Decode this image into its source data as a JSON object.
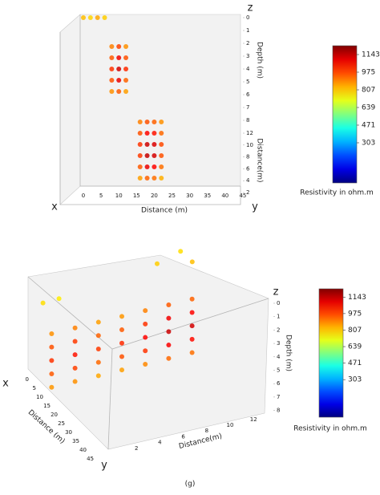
{
  "chart_data": [
    {
      "type": "scatter3d",
      "axis_names": {
        "x": "x",
        "y": "y",
        "z": "z"
      },
      "xlabel": "Distance (m)",
      "ylabel": "Distance(m)",
      "zlabel": "Depth (m)",
      "xlim": [
        0,
        45
      ],
      "ylim": [
        0,
        12
      ],
      "zlim": [
        0,
        8
      ],
      "xticks": [
        0,
        5,
        10,
        15,
        20,
        25,
        30,
        35,
        40,
        45
      ],
      "yticks": [
        12,
        10,
        8,
        6,
        4,
        2
      ],
      "zticks": [
        0,
        1,
        2,
        3,
        4,
        5,
        6,
        7,
        8
      ],
      "points": {
        "x": [
          0,
          2,
          4,
          6,
          8,
          10,
          12,
          8,
          10,
          12,
          8,
          10,
          12,
          8,
          10,
          12,
          8,
          10,
          12,
          16,
          18,
          20,
          22,
          16,
          18,
          20,
          22,
          16,
          18,
          20,
          22,
          16,
          18,
          20,
          22,
          16,
          18,
          20,
          22,
          16,
          18,
          20,
          22
        ],
        "y": [
          12,
          12,
          12,
          12,
          11,
          11,
          11,
          11,
          11,
          11,
          11,
          11,
          11,
          11,
          11,
          11,
          11,
          11,
          11,
          1,
          1,
          1,
          1,
          1,
          1,
          1,
          1,
          1,
          1,
          1,
          1,
          1,
          1,
          1,
          1,
          1,
          1,
          1,
          1,
          1,
          1,
          1,
          1
        ],
        "z": [
          0,
          0,
          0,
          0,
          2,
          2,
          2,
          3,
          3,
          3,
          4,
          4,
          4,
          5,
          5,
          5,
          6,
          6,
          6,
          3,
          3,
          3,
          3,
          4,
          4,
          4,
          4,
          5,
          5,
          5,
          5,
          6,
          6,
          6,
          6,
          7,
          7,
          7,
          7,
          8,
          8,
          8,
          8
        ],
        "values": [
          820,
          790,
          850,
          800,
          900,
          980,
          880,
          950,
          1080,
          960,
          1000,
          1120,
          1010,
          960,
          1090,
          940,
          880,
          950,
          860,
          900,
          960,
          940,
          880,
          960,
          1060,
          1040,
          930,
          1000,
          1130,
          1110,
          970,
          990,
          1140,
          1120,
          960,
          950,
          1090,
          1060,
          920,
          860,
          940,
          920,
          840
        ]
      },
      "colorbar": {
        "label": "Resistivity in ohm.m",
        "ticks": [
          1143,
          975,
          807,
          639,
          471,
          303
        ],
        "clim": [
          -79,
          1227
        ],
        "colormap": "jet"
      }
    },
    {
      "type": "scatter3d",
      "axis_names": {
        "x": "x",
        "y": "y",
        "z": "z"
      },
      "xlabel": "Distance (m)",
      "ylabel": "Distance(m)",
      "zlabel": "Depth (m)",
      "xlim": [
        0,
        45
      ],
      "ylim": [
        0,
        12
      ],
      "zlim": [
        0,
        8
      ],
      "xticks": [
        0,
        5,
        10,
        15,
        20,
        25,
        30,
        35,
        40,
        45
      ],
      "yticks": [
        2,
        4,
        6,
        8,
        10,
        12
      ],
      "zticks": [
        0,
        1,
        2,
        3,
        4,
        5,
        6,
        7,
        8
      ],
      "points": {
        "x": [
          8,
          8,
          8,
          8,
          8,
          8,
          8,
          8,
          8,
          8,
          8,
          8,
          8,
          8,
          8,
          8,
          8,
          8,
          8,
          8,
          8,
          8,
          8,
          8,
          8,
          8,
          8,
          8,
          8,
          8,
          8,
          8,
          8,
          8,
          8,
          2,
          5,
          0,
          0,
          0
        ],
        "y": [
          0,
          0,
          0,
          0,
          0,
          2,
          2,
          2,
          2,
          2,
          4,
          4,
          4,
          4,
          4,
          6,
          6,
          6,
          6,
          6,
          8,
          8,
          8,
          8,
          8,
          10,
          10,
          10,
          10,
          10,
          12,
          12,
          12,
          12,
          12,
          0,
          1,
          10,
          12,
          13
        ],
        "z": [
          4,
          5,
          6,
          7,
          8,
          4,
          5,
          6,
          7,
          8,
          4,
          5,
          6,
          7,
          8,
          4,
          5,
          6,
          7,
          8,
          4,
          5,
          6,
          7,
          8,
          4,
          5,
          6,
          7,
          8,
          4,
          5,
          6,
          7,
          8,
          2.5,
          2,
          2,
          1.5,
          2.5
        ],
        "values": [
          880,
          960,
          1000,
          950,
          870,
          900,
          990,
          1040,
          980,
          880,
          860,
          940,
          990,
          930,
          850,
          870,
          950,
          1010,
          960,
          860,
          900,
          1000,
          1060,
          1000,
          890,
          950,
          1080,
          1130,
          1070,
          930,
          940,
          1060,
          1120,
          1050,
          920,
          780,
          760,
          800,
          780,
          820
        ]
      },
      "colorbar": {
        "label": "Resistivity in ohm.m",
        "ticks": [
          1143,
          975,
          807,
          639,
          471,
          303
        ],
        "clim": [
          -79,
          1227
        ],
        "colormap": "jet"
      }
    }
  ],
  "caption": "(g)"
}
